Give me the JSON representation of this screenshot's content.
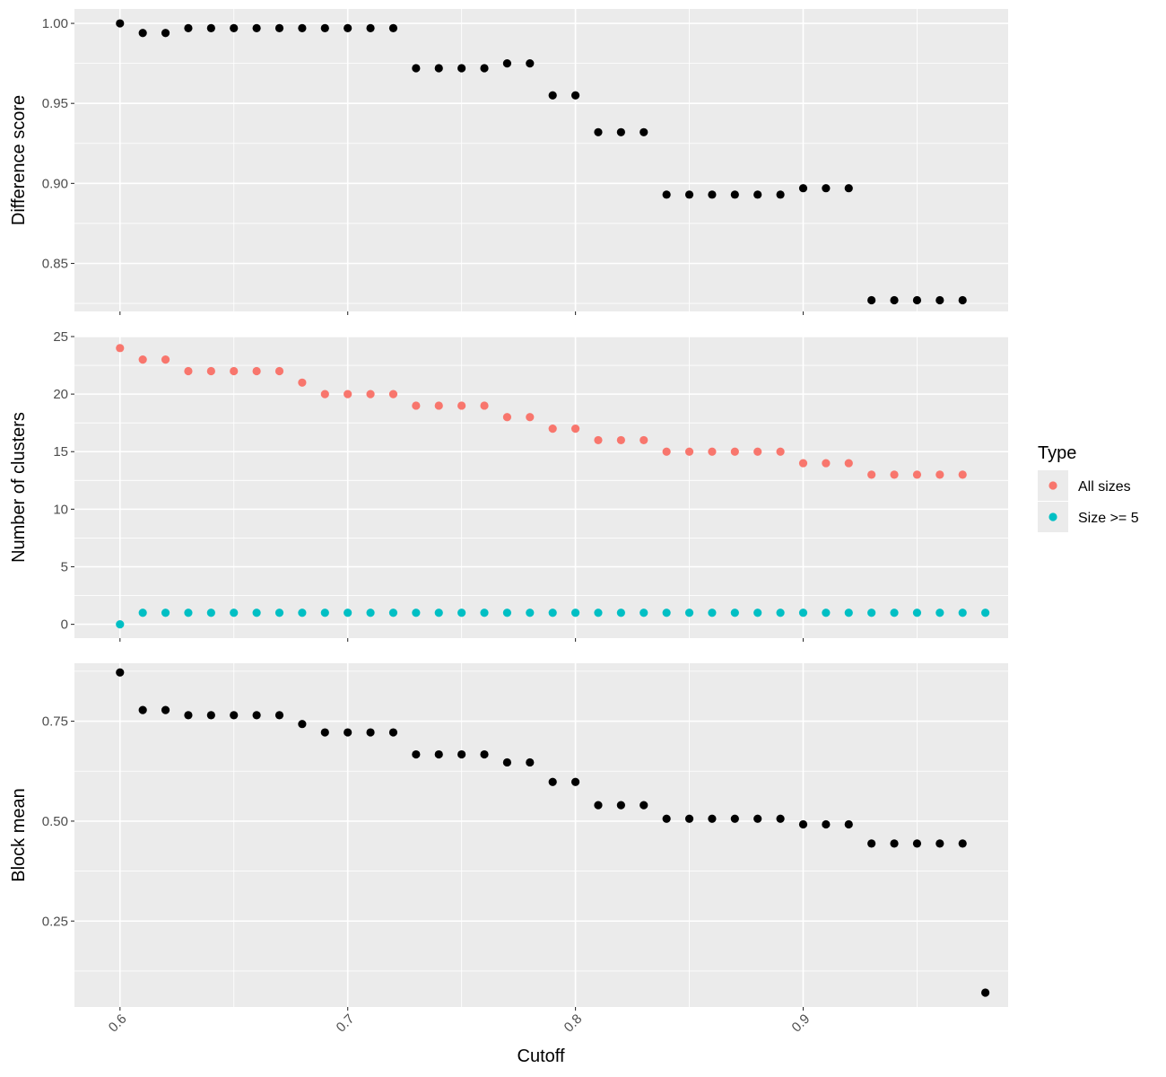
{
  "chart_data": {
    "type": "scatter",
    "layout": "faceted-vertical",
    "xlabel": "Cutoff",
    "x_ticks": [
      0.6,
      0.7,
      0.8,
      0.9
    ],
    "x_tick_labels": [
      "0.6",
      "0.7",
      "0.8",
      "0.9"
    ],
    "xlim": [
      0.58,
      0.99
    ],
    "grid": true,
    "legend": {
      "title": "Type",
      "position": "right",
      "entries": [
        {
          "name": "All sizes",
          "color": "#F8766D"
        },
        {
          "name": "Size >= 5",
          "color": "#00BFC4"
        }
      ]
    },
    "panels": [
      {
        "ylabel": "Difference score",
        "ylim": [
          0.82,
          1.009
        ],
        "y_ticks": [
          0.85,
          0.9,
          0.95,
          1.0
        ],
        "y_tick_labels": [
          "0.85",
          "0.90",
          "0.95",
          "1.00"
        ],
        "series": [
          {
            "color": "#000000",
            "x": [
              0.6,
              0.61,
              0.62,
              0.63,
              0.64,
              0.65,
              0.66,
              0.67,
              0.68,
              0.69,
              0.7,
              0.71,
              0.72,
              0.73,
              0.74,
              0.75,
              0.76,
              0.77,
              0.78,
              0.79,
              0.8,
              0.81,
              0.82,
              0.83,
              0.84,
              0.85,
              0.86,
              0.87,
              0.88,
              0.89,
              0.9,
              0.91,
              0.92,
              0.93,
              0.94,
              0.95,
              0.96,
              0.97
            ],
            "y": [
              1.0,
              0.994,
              0.994,
              0.997,
              0.997,
              0.997,
              0.997,
              0.997,
              0.997,
              0.997,
              0.997,
              0.997,
              0.997,
              0.972,
              0.972,
              0.972,
              0.972,
              0.975,
              0.975,
              0.955,
              0.955,
              0.932,
              0.932,
              0.932,
              0.893,
              0.893,
              0.893,
              0.893,
              0.893,
              0.893,
              0.897,
              0.897,
              0.897,
              0.827,
              0.827,
              0.827,
              0.827,
              0.827
            ]
          }
        ]
      },
      {
        "ylabel": "Number of clusters",
        "ylim": [
          -1.2,
          25.0
        ],
        "y_ticks": [
          0,
          5,
          10,
          15,
          20,
          25
        ],
        "y_tick_labels": [
          "0",
          "5",
          "10",
          "15",
          "20",
          "25"
        ],
        "series": [
          {
            "name": "All sizes",
            "color": "#F8766D",
            "x": [
              0.6,
              0.61,
              0.62,
              0.63,
              0.64,
              0.65,
              0.66,
              0.67,
              0.68,
              0.69,
              0.7,
              0.71,
              0.72,
              0.73,
              0.74,
              0.75,
              0.76,
              0.77,
              0.78,
              0.79,
              0.8,
              0.81,
              0.82,
              0.83,
              0.84,
              0.85,
              0.86,
              0.87,
              0.88,
              0.89,
              0.9,
              0.91,
              0.92,
              0.93,
              0.94,
              0.95,
              0.96,
              0.97
            ],
            "y": [
              24,
              23,
              23,
              22,
              22,
              22,
              22,
              22,
              21,
              20,
              20,
              20,
              20,
              19,
              19,
              19,
              19,
              18,
              18,
              17,
              17,
              16,
              16,
              16,
              15,
              15,
              15,
              15,
              15,
              15,
              14,
              14,
              14,
              13,
              13,
              13,
              13,
              13
            ]
          },
          {
            "name": "Size >= 5",
            "color": "#00BFC4",
            "x": [
              0.6,
              0.61,
              0.62,
              0.63,
              0.64,
              0.65,
              0.66,
              0.67,
              0.68,
              0.69,
              0.7,
              0.71,
              0.72,
              0.73,
              0.74,
              0.75,
              0.76,
              0.77,
              0.78,
              0.79,
              0.8,
              0.81,
              0.82,
              0.83,
              0.84,
              0.85,
              0.86,
              0.87,
              0.88,
              0.89,
              0.9,
              0.91,
              0.92,
              0.93,
              0.94,
              0.95,
              0.96,
              0.97,
              0.98
            ],
            "y": [
              0,
              1,
              1,
              1,
              1,
              1,
              1,
              1,
              1,
              1,
              1,
              1,
              1,
              1,
              1,
              1,
              1,
              1,
              1,
              1,
              1,
              1,
              1,
              1,
              1,
              1,
              1,
              1,
              1,
              1,
              1,
              1,
              1,
              1,
              1,
              1,
              1,
              1,
              1
            ]
          }
        ]
      },
      {
        "ylabel": "Block mean",
        "ylim": [
          0.035,
          0.895
        ],
        "y_ticks": [
          0.25,
          0.5,
          0.75
        ],
        "y_tick_labels": [
          "0.25",
          "0.50",
          "0.75"
        ],
        "series": [
          {
            "color": "#000000",
            "x": [
              0.6,
              0.61,
              0.62,
              0.63,
              0.64,
              0.65,
              0.66,
              0.67,
              0.68,
              0.69,
              0.7,
              0.71,
              0.72,
              0.73,
              0.74,
              0.75,
              0.76,
              0.77,
              0.78,
              0.79,
              0.8,
              0.81,
              0.82,
              0.83,
              0.84,
              0.85,
              0.86,
              0.87,
              0.88,
              0.89,
              0.9,
              0.91,
              0.92,
              0.93,
              0.94,
              0.95,
              0.96,
              0.97,
              0.98
            ],
            "y": [
              0.872,
              0.778,
              0.778,
              0.765,
              0.765,
              0.765,
              0.765,
              0.765,
              0.743,
              0.722,
              0.722,
              0.722,
              0.722,
              0.667,
              0.667,
              0.667,
              0.667,
              0.647,
              0.647,
              0.598,
              0.598,
              0.54,
              0.54,
              0.54,
              0.506,
              0.506,
              0.506,
              0.506,
              0.506,
              0.506,
              0.492,
              0.492,
              0.492,
              0.444,
              0.444,
              0.444,
              0.444,
              0.444,
              0.071
            ]
          }
        ]
      }
    ]
  }
}
